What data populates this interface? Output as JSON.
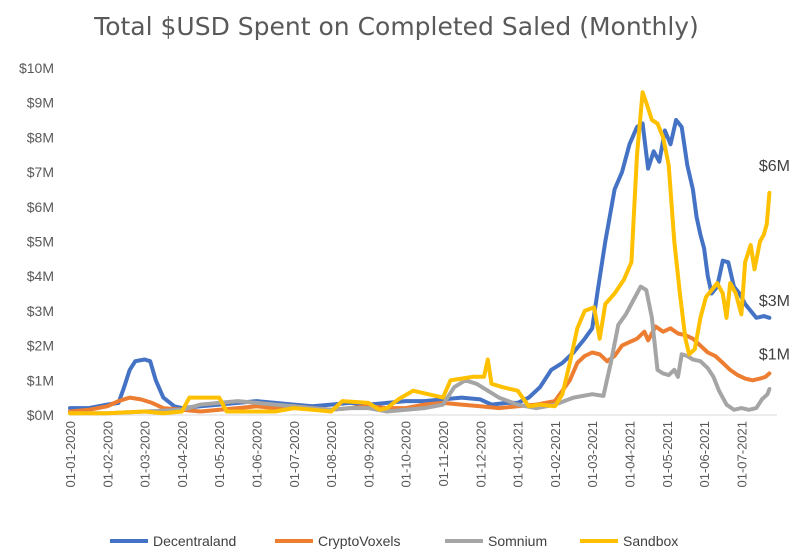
{
  "chart_data": {
    "type": "line",
    "title": "Total $USD Spent on Completed Saled (Monthly)",
    "xlabel": "",
    "ylabel": "",
    "ylim": [
      0,
      10
    ],
    "y_tick_labels": [
      "$0M",
      "$1M",
      "$2M",
      "$3M",
      "$4M",
      "$5M",
      "$6M",
      "$7M",
      "$8M",
      "$9M",
      "$10M"
    ],
    "x_tick_labels": [
      "01-01-2020",
      "01-02-2020",
      "01-03-2020",
      "01-04-2020",
      "01-05-2020",
      "01-06-2020",
      "01-07-2020",
      "01-08-2020",
      "01-09-2020",
      "01-10-2020",
      "01-11-2020",
      "01-12-2020",
      "01-01-2021",
      "01-02-2021",
      "01-03-2021",
      "01-04-2021",
      "01-05-2021",
      "01-06-2021",
      "01-07-2021"
    ],
    "y_unit": "$M",
    "grid": false,
    "legend_position": "bottom",
    "series": [
      {
        "name": "Decentraland",
        "color": "#4472C4",
        "points": [
          [
            0,
            0.2
          ],
          [
            0.5,
            0.2
          ],
          [
            1,
            0.3
          ],
          [
            1.3,
            0.35
          ],
          [
            1.45,
            0.8
          ],
          [
            1.6,
            1.3
          ],
          [
            1.75,
            1.55
          ],
          [
            2,
            1.6
          ],
          [
            2.15,
            1.55
          ],
          [
            2.3,
            1.0
          ],
          [
            2.5,
            0.5
          ],
          [
            2.8,
            0.25
          ],
          [
            3,
            0.2
          ],
          [
            3.5,
            0.25
          ],
          [
            4,
            0.3
          ],
          [
            4.5,
            0.35
          ],
          [
            5,
            0.4
          ],
          [
            5.5,
            0.35
          ],
          [
            6,
            0.3
          ],
          [
            6.5,
            0.25
          ],
          [
            7,
            0.3
          ],
          [
            7.5,
            0.35
          ],
          [
            8,
            0.3
          ],
          [
            8.5,
            0.35
          ],
          [
            9,
            0.4
          ],
          [
            9.5,
            0.4
          ],
          [
            10,
            0.45
          ],
          [
            10.5,
            0.5
          ],
          [
            11,
            0.45
          ],
          [
            11.3,
            0.3
          ],
          [
            11.7,
            0.35
          ],
          [
            12,
            0.35
          ],
          [
            12.3,
            0.5
          ],
          [
            12.6,
            0.8
          ],
          [
            12.9,
            1.3
          ],
          [
            13.2,
            1.5
          ],
          [
            13.5,
            1.8
          ],
          [
            13.8,
            2.2
          ],
          [
            14,
            2.5
          ],
          [
            14.15,
            3.6
          ],
          [
            14.35,
            5.0
          ],
          [
            14.6,
            6.5
          ],
          [
            14.8,
            7.0
          ],
          [
            15.0,
            7.8
          ],
          [
            15.2,
            8.3
          ],
          [
            15.35,
            8.4
          ],
          [
            15.5,
            7.1
          ],
          [
            15.65,
            7.6
          ],
          [
            15.8,
            7.3
          ],
          [
            15.95,
            8.2
          ],
          [
            16.1,
            7.8
          ],
          [
            16.25,
            8.5
          ],
          [
            16.4,
            8.3
          ],
          [
            16.55,
            7.2
          ],
          [
            16.7,
            6.5
          ],
          [
            16.8,
            5.7
          ],
          [
            16.9,
            5.2
          ],
          [
            17.0,
            4.8
          ],
          [
            17.1,
            4.0
          ],
          [
            17.2,
            3.5
          ],
          [
            17.35,
            3.7
          ],
          [
            17.5,
            4.45
          ],
          [
            17.65,
            4.4
          ],
          [
            17.8,
            3.7
          ],
          [
            17.95,
            3.5
          ],
          [
            18.1,
            3.2
          ],
          [
            18.25,
            3.0
          ],
          [
            18.4,
            2.8
          ],
          [
            18.6,
            2.85
          ],
          [
            18.75,
            2.8
          ]
        ]
      },
      {
        "name": "CryptoVoxels",
        "color": "#ED7D31",
        "points": [
          [
            0,
            0.1
          ],
          [
            0.5,
            0.15
          ],
          [
            1,
            0.25
          ],
          [
            1.3,
            0.4
          ],
          [
            1.6,
            0.5
          ],
          [
            1.9,
            0.45
          ],
          [
            2.2,
            0.35
          ],
          [
            2.5,
            0.2
          ],
          [
            3,
            0.15
          ],
          [
            3.5,
            0.1
          ],
          [
            4,
            0.15
          ],
          [
            4.5,
            0.2
          ],
          [
            5,
            0.25
          ],
          [
            5.5,
            0.2
          ],
          [
            6,
            0.25
          ],
          [
            6.5,
            0.2
          ],
          [
            7,
            0.15
          ],
          [
            7.5,
            0.2
          ],
          [
            8,
            0.25
          ],
          [
            8.5,
            0.2
          ],
          [
            9,
            0.2
          ],
          [
            9.5,
            0.3
          ],
          [
            10,
            0.35
          ],
          [
            10.5,
            0.3
          ],
          [
            11,
            0.25
          ],
          [
            11.5,
            0.2
          ],
          [
            12,
            0.25
          ],
          [
            12.5,
            0.3
          ],
          [
            13,
            0.4
          ],
          [
            13.2,
            0.7
          ],
          [
            13.4,
            1.0
          ],
          [
            13.6,
            1.5
          ],
          [
            13.8,
            1.7
          ],
          [
            14,
            1.8
          ],
          [
            14.2,
            1.75
          ],
          [
            14.4,
            1.55
          ],
          [
            14.6,
            1.7
          ],
          [
            14.8,
            2.0
          ],
          [
            15.0,
            2.1
          ],
          [
            15.2,
            2.2
          ],
          [
            15.4,
            2.4
          ],
          [
            15.5,
            2.15
          ],
          [
            15.7,
            2.55
          ],
          [
            15.9,
            2.4
          ],
          [
            16.1,
            2.5
          ],
          [
            16.3,
            2.35
          ],
          [
            16.5,
            2.3
          ],
          [
            16.7,
            2.2
          ],
          [
            16.9,
            2.0
          ],
          [
            17.1,
            1.8
          ],
          [
            17.3,
            1.7
          ],
          [
            17.5,
            1.5
          ],
          [
            17.7,
            1.3
          ],
          [
            17.9,
            1.15
          ],
          [
            18.1,
            1.05
          ],
          [
            18.3,
            1.0
          ],
          [
            18.5,
            1.05
          ],
          [
            18.65,
            1.1
          ],
          [
            18.75,
            1.2
          ]
        ]
      },
      {
        "name": "Somnium",
        "color": "#A5A5A5",
        "points": [
          [
            0,
            0.05
          ],
          [
            1,
            0.05
          ],
          [
            2,
            0.1
          ],
          [
            3,
            0.15
          ],
          [
            3.5,
            0.3
          ],
          [
            4,
            0.35
          ],
          [
            4.5,
            0.4
          ],
          [
            5,
            0.35
          ],
          [
            5.5,
            0.3
          ],
          [
            6,
            0.25
          ],
          [
            6.5,
            0.2
          ],
          [
            7,
            0.15
          ],
          [
            7.5,
            0.2
          ],
          [
            8,
            0.2
          ],
          [
            8.5,
            0.1
          ],
          [
            9,
            0.15
          ],
          [
            9.5,
            0.2
          ],
          [
            10,
            0.3
          ],
          [
            10.3,
            0.8
          ],
          [
            10.6,
            1.0
          ],
          [
            10.9,
            0.9
          ],
          [
            11.2,
            0.7
          ],
          [
            11.5,
            0.5
          ],
          [
            12,
            0.3
          ],
          [
            12.5,
            0.2
          ],
          [
            13,
            0.3
          ],
          [
            13.5,
            0.5
          ],
          [
            14,
            0.6
          ],
          [
            14.3,
            0.55
          ],
          [
            14.5,
            1.5
          ],
          [
            14.7,
            2.6
          ],
          [
            14.9,
            2.9
          ],
          [
            15.1,
            3.3
          ],
          [
            15.3,
            3.7
          ],
          [
            15.45,
            3.6
          ],
          [
            15.6,
            2.8
          ],
          [
            15.75,
            1.3
          ],
          [
            15.9,
            1.2
          ],
          [
            16.05,
            1.15
          ],
          [
            16.2,
            1.3
          ],
          [
            16.3,
            1.1
          ],
          [
            16.4,
            1.75
          ],
          [
            16.55,
            1.7
          ],
          [
            16.7,
            1.6
          ],
          [
            16.9,
            1.55
          ],
          [
            17.1,
            1.35
          ],
          [
            17.25,
            1.1
          ],
          [
            17.4,
            0.7
          ],
          [
            17.6,
            0.3
          ],
          [
            17.8,
            0.15
          ],
          [
            18.0,
            0.2
          ],
          [
            18.2,
            0.15
          ],
          [
            18.4,
            0.2
          ],
          [
            18.55,
            0.45
          ],
          [
            18.7,
            0.6
          ],
          [
            18.75,
            0.75
          ]
        ]
      },
      {
        "name": "Sandbox",
        "color": "#FFC000",
        "points": [
          [
            0,
            0.05
          ],
          [
            1,
            0.05
          ],
          [
            2,
            0.1
          ],
          [
            2.5,
            0.05
          ],
          [
            3,
            0.1
          ],
          [
            3.2,
            0.5
          ],
          [
            4,
            0.5
          ],
          [
            4.2,
            0.1
          ],
          [
            5,
            0.1
          ],
          [
            5.5,
            0.1
          ],
          [
            6,
            0.2
          ],
          [
            6.5,
            0.15
          ],
          [
            7,
            0.1
          ],
          [
            7.3,
            0.4
          ],
          [
            8,
            0.35
          ],
          [
            8.3,
            0.15
          ],
          [
            8.5,
            0.2
          ],
          [
            8.8,
            0.45
          ],
          [
            9.2,
            0.7
          ],
          [
            9.6,
            0.6
          ],
          [
            10,
            0.5
          ],
          [
            10.2,
            1.0
          ],
          [
            10.5,
            1.05
          ],
          [
            10.8,
            1.1
          ],
          [
            11.1,
            1.1
          ],
          [
            11.2,
            1.6
          ],
          [
            11.3,
            0.9
          ],
          [
            11.6,
            0.8
          ],
          [
            12,
            0.7
          ],
          [
            12.3,
            0.25
          ],
          [
            12.6,
            0.3
          ],
          [
            13,
            0.25
          ],
          [
            13.2,
            0.6
          ],
          [
            13.4,
            1.5
          ],
          [
            13.6,
            2.5
          ],
          [
            13.8,
            3.0
          ],
          [
            14.05,
            3.1
          ],
          [
            14.2,
            2.2
          ],
          [
            14.35,
            3.2
          ],
          [
            14.6,
            3.5
          ],
          [
            14.85,
            3.9
          ],
          [
            15.05,
            4.4
          ],
          [
            15.2,
            7.5
          ],
          [
            15.35,
            9.3
          ],
          [
            15.45,
            9.0
          ],
          [
            15.6,
            8.5
          ],
          [
            15.75,
            8.4
          ],
          [
            15.9,
            8.0
          ],
          [
            16.05,
            7.2
          ],
          [
            16.2,
            5.0
          ],
          [
            16.35,
            3.5
          ],
          [
            16.5,
            2.2
          ],
          [
            16.6,
            1.75
          ],
          [
            16.75,
            1.9
          ],
          [
            16.9,
            2.8
          ],
          [
            17.05,
            3.4
          ],
          [
            17.2,
            3.6
          ],
          [
            17.35,
            3.8
          ],
          [
            17.5,
            3.5
          ],
          [
            17.6,
            2.8
          ],
          [
            17.7,
            3.8
          ],
          [
            17.85,
            3.5
          ],
          [
            18.0,
            2.9
          ],
          [
            18.1,
            4.4
          ],
          [
            18.25,
            4.9
          ],
          [
            18.35,
            4.2
          ],
          [
            18.5,
            5.0
          ],
          [
            18.6,
            5.2
          ],
          [
            18.68,
            5.5
          ],
          [
            18.75,
            6.4
          ]
        ]
      }
    ],
    "annotations": [
      {
        "text": "$6M",
        "series": "Sandbox"
      },
      {
        "text": "$3M",
        "series": "Decentraland"
      },
      {
        "text": "$1M",
        "series": "CryptoVoxels"
      }
    ]
  }
}
